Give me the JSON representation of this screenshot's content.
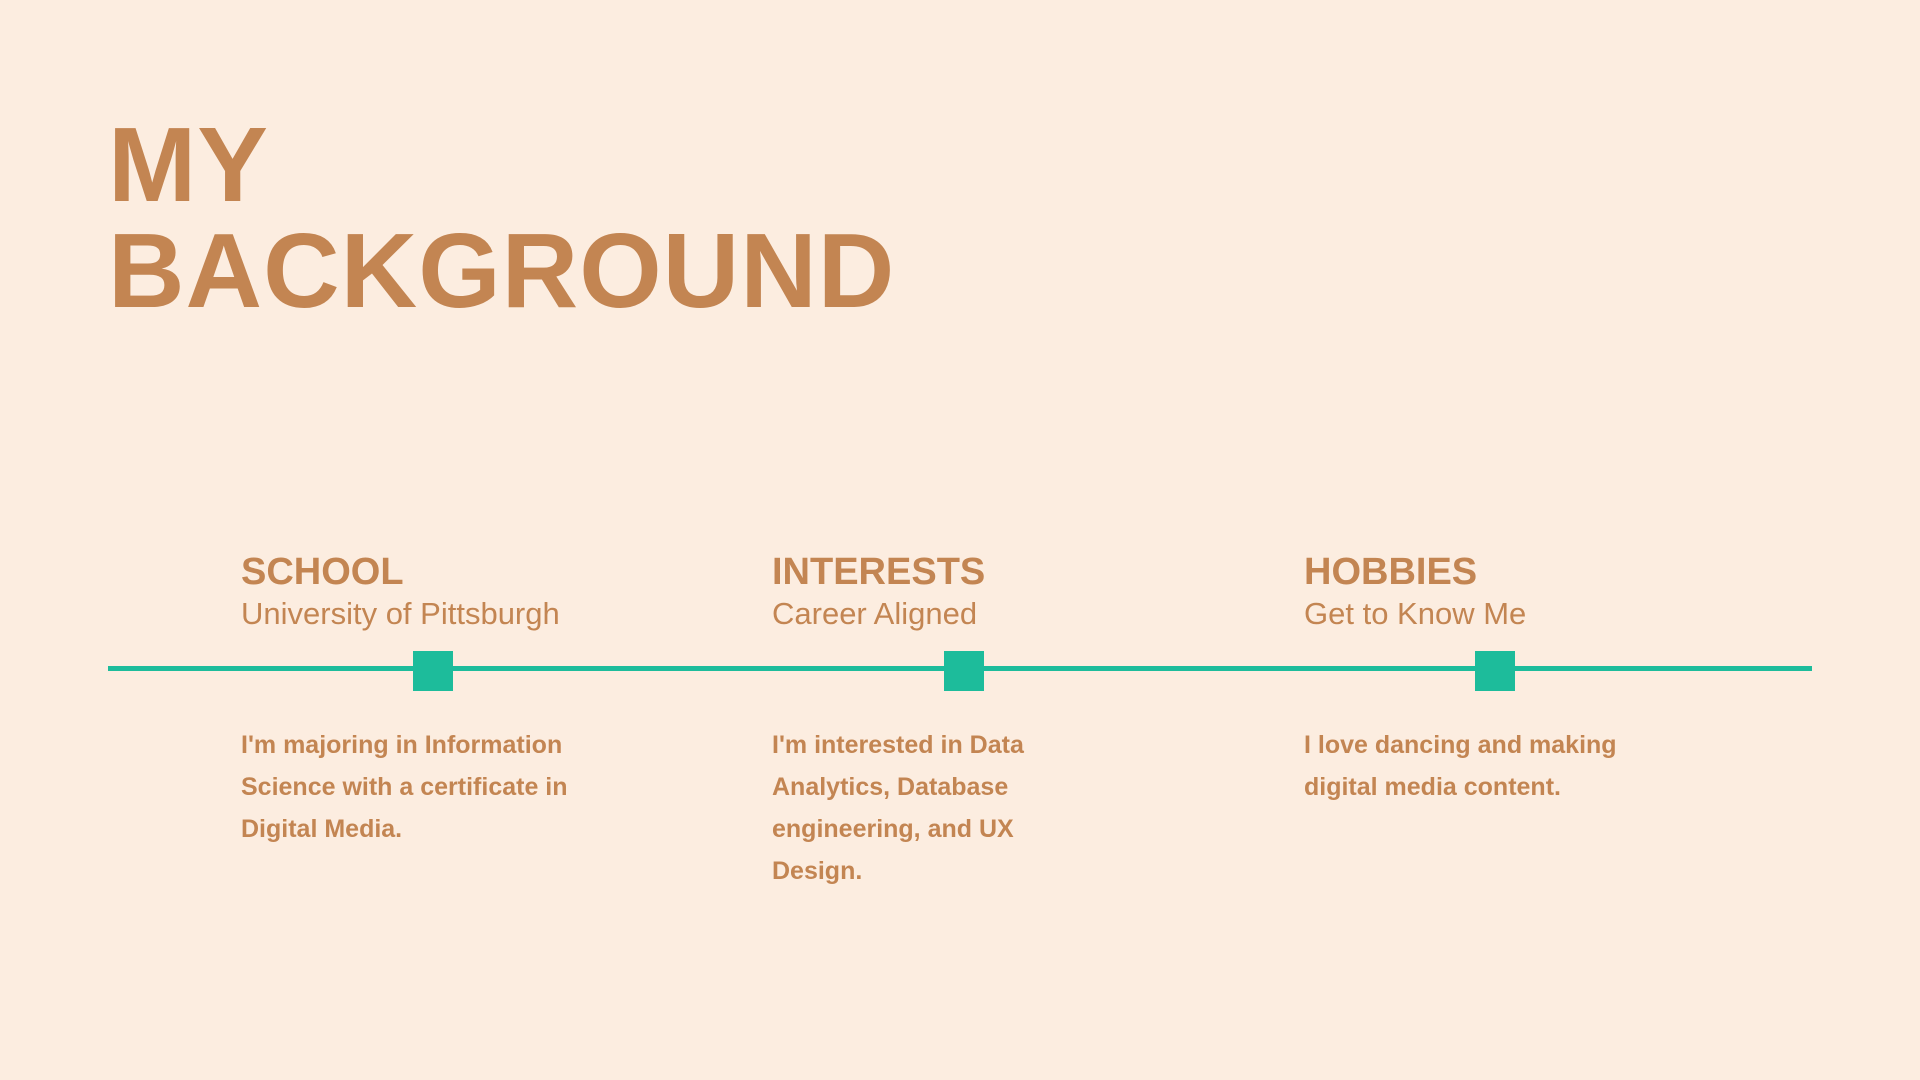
{
  "slide": {
    "title_line1": "MY",
    "title_line2": "BACKGROUND"
  },
  "colors": {
    "background": "#fcede0",
    "text": "#c38552",
    "accent": "#1dbc9b"
  },
  "timeline": {
    "items": [
      {
        "heading": "SCHOOL",
        "subheading": "University of Pittsburgh",
        "body": "I'm majoring in Information Science with a certificate in Digital Media."
      },
      {
        "heading": "INTERESTS",
        "subheading": "Career Aligned",
        "body": "I'm interested in Data Analytics, Database engineering, and UX Design."
      },
      {
        "heading": "HOBBIES",
        "subheading": "Get to Know Me",
        "body": "I love dancing and making digital media content."
      }
    ]
  }
}
